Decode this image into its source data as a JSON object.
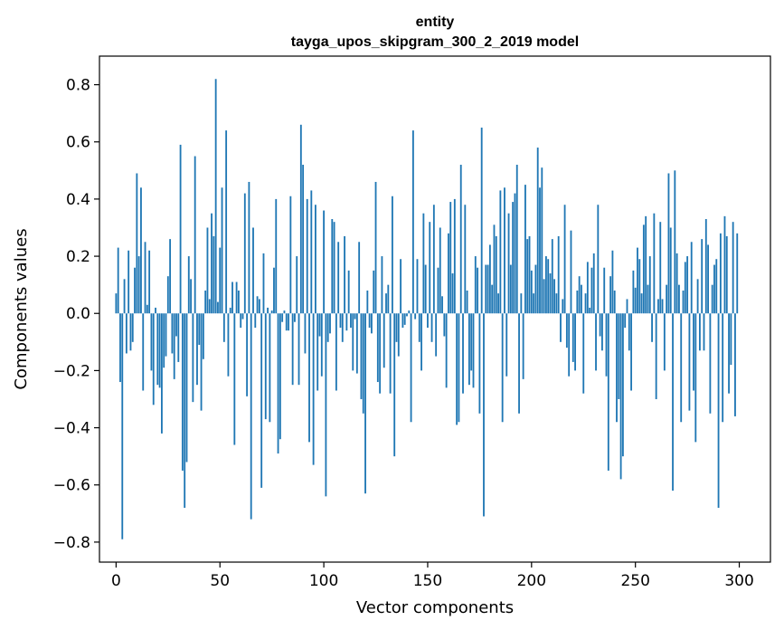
{
  "chart_data": {
    "type": "bar",
    "title_lines": [
      "entity",
      "tayga_upos_skipgram_300_2_2019 model"
    ],
    "xlabel": "Vector components",
    "ylabel": "Components values",
    "xlim": [
      -8,
      315
    ],
    "ylim": [
      -0.87,
      0.9
    ],
    "xticks": [
      0,
      50,
      100,
      150,
      200,
      250,
      300
    ],
    "yticks": [
      -0.8,
      -0.6,
      -0.4,
      -0.2,
      0.0,
      0.2,
      0.4,
      0.6,
      0.8
    ],
    "ytick_labels": [
      "−0.8",
      "−0.6",
      "−0.4",
      "−0.2",
      "0.0",
      "0.2",
      "0.4",
      "0.6",
      "0.8"
    ],
    "grid": false,
    "bar_color": "#1f77b4",
    "x": [
      0,
      1,
      2,
      3,
      4,
      5,
      6,
      7,
      8,
      9,
      10,
      11,
      12,
      13,
      14,
      15,
      16,
      17,
      18,
      19,
      20,
      21,
      22,
      23,
      24,
      25,
      26,
      27,
      28,
      29,
      30,
      31,
      32,
      33,
      34,
      35,
      36,
      37,
      38,
      39,
      40,
      41,
      42,
      43,
      44,
      45,
      46,
      47,
      48,
      49,
      50,
      51,
      52,
      53,
      54,
      55,
      56,
      57,
      58,
      59,
      60,
      61,
      62,
      63,
      64,
      65,
      66,
      67,
      68,
      69,
      70,
      71,
      72,
      73,
      74,
      75,
      76,
      77,
      78,
      79,
      80,
      81,
      82,
      83,
      84,
      85,
      86,
      87,
      88,
      89,
      90,
      91,
      92,
      93,
      94,
      95,
      96,
      97,
      98,
      99,
      100,
      101,
      102,
      103,
      104,
      105,
      106,
      107,
      108,
      109,
      110,
      111,
      112,
      113,
      114,
      115,
      116,
      117,
      118,
      119,
      120,
      121,
      122,
      123,
      124,
      125,
      126,
      127,
      128,
      129,
      130,
      131,
      132,
      133,
      134,
      135,
      136,
      137,
      138,
      139,
      140,
      141,
      142,
      143,
      144,
      145,
      146,
      147,
      148,
      149,
      150,
      151,
      152,
      153,
      154,
      155,
      156,
      157,
      158,
      159,
      160,
      161,
      162,
      163,
      164,
      165,
      166,
      167,
      168,
      169,
      170,
      171,
      172,
      173,
      174,
      175,
      176,
      177,
      178,
      179,
      180,
      181,
      182,
      183,
      184,
      185,
      186,
      187,
      188,
      189,
      190,
      191,
      192,
      193,
      194,
      195,
      196,
      197,
      198,
      199,
      200,
      201,
      202,
      203,
      204,
      205,
      206,
      207,
      208,
      209,
      210,
      211,
      212,
      213,
      214,
      215,
      216,
      217,
      218,
      219,
      220,
      221,
      222,
      223,
      224,
      225,
      226,
      227,
      228,
      229,
      230,
      231,
      232,
      233,
      234,
      235,
      236,
      237,
      238,
      239,
      240,
      241,
      242,
      243,
      244,
      245,
      246,
      247,
      248,
      249,
      250,
      251,
      252,
      253,
      254,
      255,
      256,
      257,
      258,
      259,
      260,
      261,
      262,
      263,
      264,
      265,
      266,
      267,
      268,
      269,
      270,
      271,
      272,
      273,
      274,
      275,
      276,
      277,
      278,
      279,
      280,
      281,
      282,
      283,
      284,
      285,
      286,
      287,
      288,
      289,
      290,
      291,
      292,
      293,
      294,
      295,
      296,
      297,
      298,
      299
    ],
    "values": [
      0.07,
      0.23,
      -0.24,
      -0.79,
      0.12,
      -0.14,
      0.22,
      -0.13,
      -0.1,
      0.16,
      0.49,
      0.2,
      0.44,
      -0.27,
      0.25,
      0.03,
      0.22,
      -0.2,
      -0.32,
      0.02,
      -0.25,
      -0.26,
      -0.42,
      -0.19,
      -0.15,
      0.13,
      0.26,
      -0.14,
      -0.23,
      -0.08,
      -0.17,
      0.59,
      -0.55,
      -0.68,
      -0.52,
      0.2,
      0.12,
      -0.31,
      0.55,
      -0.25,
      -0.11,
      -0.34,
      -0.16,
      0.08,
      0.3,
      0.05,
      0.35,
      0.27,
      0.82,
      0.04,
      0.23,
      0.44,
      -0.1,
      0.64,
      -0.22,
      0.02,
      0.11,
      -0.46,
      0.11,
      0.08,
      -0.05,
      -0.02,
      0.42,
      -0.29,
      0.46,
      -0.72,
      0.3,
      -0.05,
      0.06,
      0.05,
      -0.61,
      0.21,
      -0.37,
      0.02,
      -0.38,
      0.01,
      0.16,
      0.4,
      -0.49,
      -0.44,
      -0.03,
      0.01,
      -0.06,
      -0.06,
      0.41,
      -0.25,
      -0.03,
      0.2,
      -0.25,
      0.66,
      0.52,
      -0.14,
      0.4,
      -0.45,
      0.43,
      -0.53,
      0.38,
      -0.27,
      -0.08,
      -0.22,
      0.36,
      -0.64,
      -0.1,
      -0.07,
      0.33,
      0.32,
      -0.27,
      0.25,
      -0.05,
      -0.1,
      0.27,
      -0.06,
      0.15,
      -0.05,
      -0.2,
      -0.02,
      -0.21,
      0.25,
      -0.3,
      -0.35,
      -0.63,
      0.08,
      -0.05,
      -0.07,
      0.15,
      0.46,
      -0.24,
      -0.28,
      0.2,
      -0.19,
      0.07,
      0.1,
      -0.28,
      0.41,
      -0.5,
      -0.1,
      -0.15,
      0.19,
      -0.05,
      -0.04,
      -0.01,
      0.01,
      -0.38,
      0.64,
      -0.02,
      0.19,
      -0.1,
      -0.2,
      0.35,
      0.17,
      -0.05,
      0.32,
      -0.1,
      0.38,
      -0.15,
      0.16,
      0.3,
      0.06,
      -0.08,
      -0.26,
      0.28,
      0.39,
      0.14,
      0.4,
      -0.39,
      -0.38,
      0.52,
      -0.28,
      0.38,
      0.08,
      -0.25,
      -0.2,
      -0.26,
      0.2,
      0.16,
      -0.35,
      0.65,
      -0.71,
      0.17,
      0.17,
      0.24,
      0.1,
      0.31,
      0.27,
      0.07,
      0.43,
      -0.38,
      0.44,
      -0.22,
      0.35,
      0.17,
      0.39,
      0.42,
      0.52,
      -0.35,
      0.07,
      -0.23,
      0.45,
      0.26,
      0.27,
      0.15,
      0.07,
      0.17,
      0.58,
      0.44,
      0.51,
      0.12,
      0.2,
      0.19,
      0.14,
      0.26,
      0.12,
      0.07,
      0.27,
      -0.1,
      0.05,
      0.38,
      -0.12,
      -0.22,
      0.29,
      -0.17,
      -0.2,
      0.08,
      0.13,
      0.1,
      -0.28,
      0.07,
      0.18,
      0.02,
      0.16,
      0.21,
      -0.2,
      0.38,
      -0.08,
      -0.13,
      0.16,
      -0.22,
      -0.55,
      0.13,
      0.22,
      0.08,
      -0.38,
      -0.3,
      -0.58,
      -0.5,
      -0.05,
      0.05,
      -0.13,
      -0.27,
      0.15,
      0.09,
      0.23,
      0.19,
      0.07,
      0.31,
      0.34,
      0.1,
      0.2,
      -0.1,
      0.35,
      -0.3,
      0.05,
      0.32,
      0.05,
      -0.2,
      0.1,
      0.49,
      0.3,
      -0.62,
      0.5,
      0.21,
      0.1,
      -0.38,
      0.08,
      0.18,
      0.2,
      -0.34,
      0.25,
      -0.27,
      -0.45,
      0.12,
      -0.13,
      0.26,
      -0.13,
      0.33,
      0.24,
      -0.35,
      0.1,
      0.17,
      0.19,
      -0.68,
      0.28,
      -0.38,
      0.34,
      0.27,
      -0.28,
      -0.18,
      0.32,
      -0.36,
      0.28
    ]
  }
}
